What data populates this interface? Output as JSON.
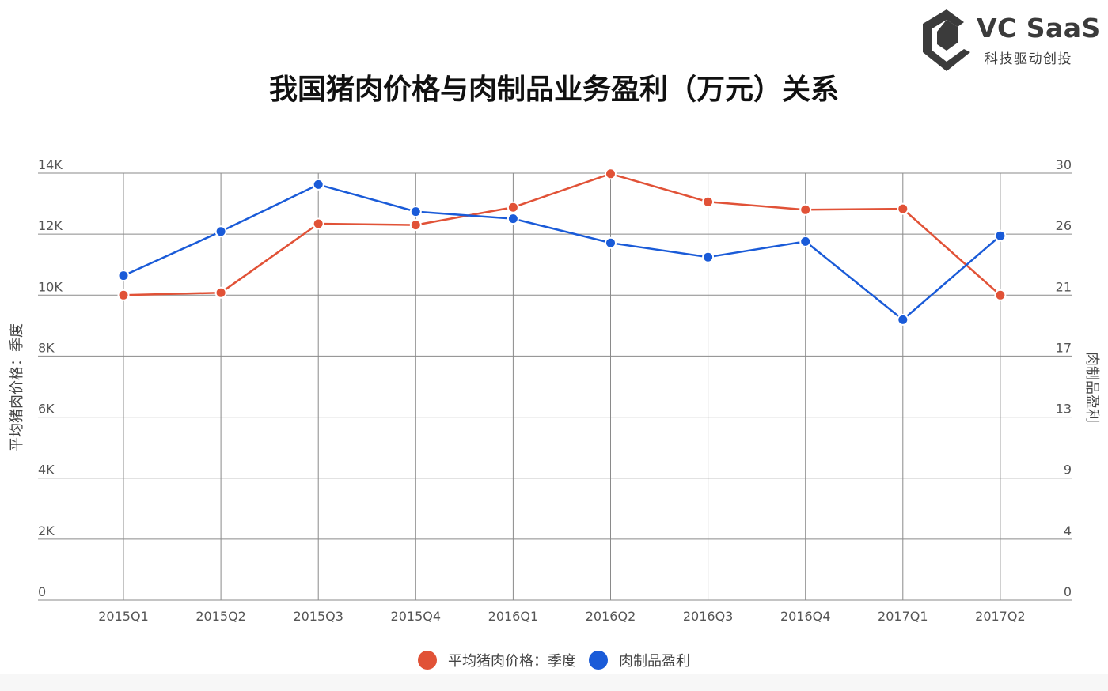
{
  "brand": {
    "name": "VC SaaS",
    "tagline": "科技驱动创投"
  },
  "chart_data": {
    "type": "line",
    "title": "我国猪肉价格与肉制品业务盈利（万元）关系",
    "categories": [
      "2015Q1",
      "2015Q2",
      "2015Q3",
      "2015Q4",
      "2016Q1",
      "2016Q2",
      "2016Q3",
      "2016Q4",
      "2017Q1",
      "2017Q2"
    ],
    "ylabel": "平均猪肉价格：季度",
    "y2label": "肉制品盈利",
    "ylim": [
      0,
      14000
    ],
    "y2lim": [
      0,
      30
    ],
    "yticks": [
      "0",
      "2K",
      "4K",
      "6K",
      "8K",
      "10K",
      "12K",
      "14K"
    ],
    "y2ticks": [
      "0",
      "4",
      "9",
      "13",
      "17",
      "21",
      "26",
      "30"
    ],
    "grid": true,
    "legend_position": "bottom",
    "series": [
      {
        "name": "平均猪肉价格：季度",
        "axis": "left",
        "color": "#e15237",
        "values": [
          10000,
          10080,
          12340,
          12300,
          12880,
          13980,
          13060,
          12800,
          12830,
          10000
        ]
      },
      {
        "name": "肉制品盈利",
        "axis": "right",
        "color": "#1a5bd8",
        "values": [
          22.8,
          25.9,
          29.2,
          27.3,
          26.8,
          25.1,
          24.1,
          25.2,
          19.7,
          25.6
        ]
      }
    ]
  }
}
